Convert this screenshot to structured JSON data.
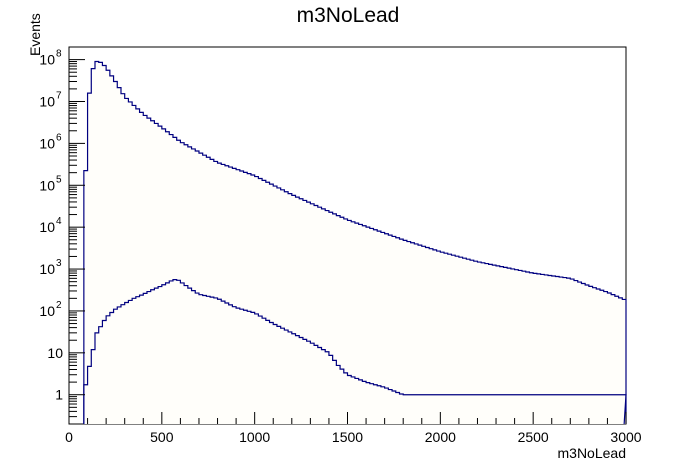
{
  "chart_data": {
    "type": "line",
    "title": "m3NoLead",
    "xlabel": "m3NoLead",
    "ylabel": "Events",
    "xlim": [
      0,
      3000
    ],
    "ylim": [
      0.2,
      200000000
    ],
    "yscale": "log",
    "grid": false,
    "legend": "none",
    "x_ticks": [
      "0",
      "500",
      "1000",
      "1500",
      "2000",
      "2500",
      "3000"
    ],
    "y_ticks": [
      "1",
      "10",
      "10^2",
      "10^3",
      "10^4",
      "10^5",
      "10^6",
      "10^7",
      "10^8"
    ],
    "series": [
      {
        "color": "#000080",
        "fill": "#fffefa",
        "x": [
          80,
          100,
          120,
          150,
          175,
          200,
          250,
          300,
          400,
          500,
          600,
          800,
          1000,
          1200,
          1500,
          1800,
          2000,
          2200,
          2500,
          2700,
          2800,
          2900,
          3000
        ],
        "values": [
          10000,
          5000000,
          50000000,
          90000000,
          85000000,
          65000000,
          30000000,
          13000000,
          5000000,
          2400000,
          1100000,
          350000,
          170000,
          60000,
          15000,
          5000,
          2600,
          1500,
          800,
          600,
          400,
          280,
          180
        ]
      },
      {
        "color": "#000080",
        "fill": "none",
        "x": [
          80,
          100,
          150,
          200,
          250,
          300,
          350,
          400,
          450,
          500,
          550,
          580,
          600,
          650,
          700,
          800,
          900,
          1000,
          1100,
          1200,
          1300,
          1400,
          1450,
          1500,
          1600,
          1700,
          1800,
          1900,
          2000,
          2100,
          2200,
          2300,
          2400,
          2500,
          2600,
          2700,
          2800,
          2900,
          2990
        ],
        "values": [
          1,
          3,
          30,
          70,
          110,
          150,
          200,
          250,
          320,
          400,
          520,
          580,
          500,
          350,
          250,
          200,
          120,
          90,
          50,
          30,
          18,
          10,
          5,
          3,
          2,
          1.5,
          1,
          1,
          1,
          1,
          1,
          1,
          1,
          1,
          1,
          1,
          1,
          1,
          1
        ]
      }
    ]
  }
}
